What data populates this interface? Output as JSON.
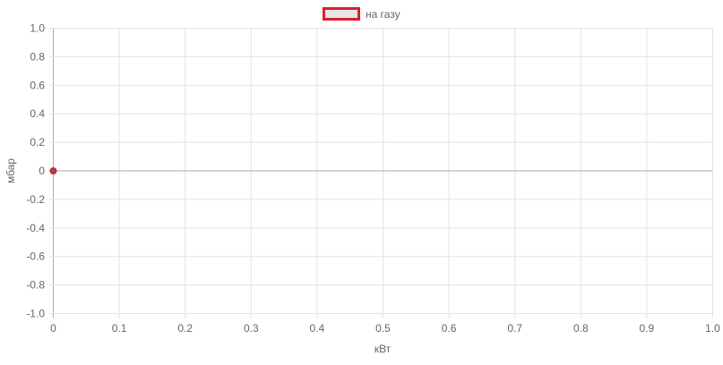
{
  "chart_data": {
    "type": "scatter",
    "title": "",
    "xlabel": "кВт",
    "ylabel": "мбар",
    "xlim": [
      0,
      1
    ],
    "ylim": [
      -1,
      1
    ],
    "x_ticks": [
      "0",
      "0.1",
      "0.2",
      "0.3",
      "0.4",
      "0.5",
      "0.6",
      "0.7",
      "0.8",
      "0.9",
      "1.0"
    ],
    "y_ticks": [
      "1.0",
      "0.8",
      "0.6",
      "0.4",
      "0.2",
      "0",
      "-0.2",
      "-0.4",
      "-0.6",
      "-0.8",
      "-1.0"
    ],
    "grid": true,
    "legend_position": "top",
    "series": [
      {
        "name": "на газу",
        "points": [
          {
            "x": 0,
            "y": 0
          }
        ],
        "border_color": "#dc1c2c",
        "fill_color": "#e5e5e5"
      }
    ]
  }
}
